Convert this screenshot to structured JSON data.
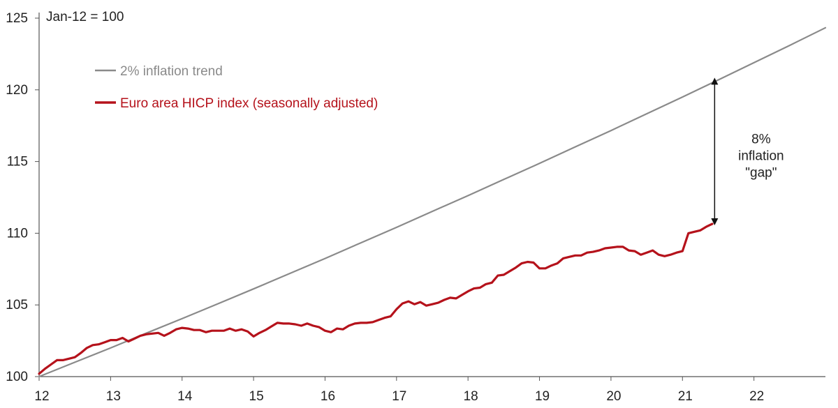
{
  "chart_data": {
    "type": "line",
    "unit_label": "Jan-12 = 100",
    "xlim": [
      12,
      23
    ],
    "ylim": [
      100,
      125
    ],
    "x_ticks": [
      {
        "value": 12,
        "label": "12"
      },
      {
        "value": 13,
        "label": "13"
      },
      {
        "value": 14,
        "label": "14"
      },
      {
        "value": 15,
        "label": "15"
      },
      {
        "value": 16,
        "label": "16"
      },
      {
        "value": 17,
        "label": "17"
      },
      {
        "value": 18,
        "label": "18"
      },
      {
        "value": 19,
        "label": "19"
      },
      {
        "value": 20,
        "label": "20"
      },
      {
        "value": 21,
        "label": "21"
      },
      {
        "value": 22,
        "label": "22"
      }
    ],
    "y_ticks": [
      {
        "value": 100,
        "label": "100"
      },
      {
        "value": 105,
        "label": "105"
      },
      {
        "value": 110,
        "label": "110"
      },
      {
        "value": 115,
        "label": "115"
      },
      {
        "value": 120,
        "label": "120"
      },
      {
        "value": 125,
        "label": "125"
      }
    ],
    "grid": false,
    "legend_position": "top-left",
    "series": [
      {
        "name": "2% inflation trend",
        "color": "#8a8a8a",
        "x": [
          12,
          12.5,
          13,
          13.5,
          14,
          14.5,
          15,
          15.5,
          16,
          16.5,
          17,
          17.5,
          18,
          18.5,
          19,
          19.5,
          20,
          20.5,
          21,
          21.5,
          22,
          22.5,
          23
        ],
        "values": [
          100.0,
          101.0,
          102.0,
          103.03,
          104.04,
          105.08,
          106.12,
          107.18,
          108.24,
          109.33,
          110.41,
          111.52,
          112.62,
          113.75,
          114.87,
          116.02,
          117.16,
          118.33,
          119.5,
          120.69,
          121.89,
          123.1,
          124.33
        ]
      },
      {
        "name": "Euro area HICP index (seasonally adjusted)",
        "color": "#b5121b",
        "x": [
          12,
          12.083,
          12.167,
          12.25,
          12.333,
          12.417,
          12.5,
          12.583,
          12.667,
          12.75,
          12.833,
          12.917,
          13,
          13.083,
          13.167,
          13.25,
          13.333,
          13.417,
          13.5,
          13.583,
          13.667,
          13.75,
          13.833,
          13.917,
          14,
          14.083,
          14.167,
          14.25,
          14.333,
          14.417,
          14.5,
          14.583,
          14.667,
          14.75,
          14.833,
          14.917,
          15,
          15.083,
          15.167,
          15.25,
          15.333,
          15.417,
          15.5,
          15.583,
          15.667,
          15.75,
          15.833,
          15.917,
          16,
          16.083,
          16.167,
          16.25,
          16.333,
          16.417,
          16.5,
          16.583,
          16.667,
          16.75,
          16.833,
          16.917,
          17,
          17.083,
          17.167,
          17.25,
          17.333,
          17.417,
          17.5,
          17.583,
          17.667,
          17.75,
          17.833,
          17.917,
          18,
          18.083,
          18.167,
          18.25,
          18.333,
          18.417,
          18.5,
          18.583,
          18.667,
          18.75,
          18.833,
          18.917,
          19,
          19.083,
          19.167,
          19.25,
          19.333,
          19.417,
          19.5,
          19.583,
          19.667,
          19.75,
          19.833,
          19.917,
          20,
          20.083,
          20.167,
          20.25,
          20.333,
          20.417,
          20.5,
          20.583,
          20.667,
          20.75,
          20.833,
          20.917,
          21,
          21.083,
          21.167,
          21.25,
          21.333,
          21.417
        ],
        "values": [
          100.2,
          100.55,
          100.85,
          101.15,
          101.15,
          101.25,
          101.35,
          101.65,
          102.0,
          102.2,
          102.25,
          102.4,
          102.55,
          102.55,
          102.7,
          102.45,
          102.65,
          102.85,
          102.95,
          103.0,
          103.05,
          102.85,
          103.05,
          103.3,
          103.4,
          103.35,
          103.25,
          103.25,
          103.1,
          103.2,
          103.2,
          103.2,
          103.35,
          103.2,
          103.3,
          103.15,
          102.8,
          103.05,
          103.25,
          103.5,
          103.75,
          103.7,
          103.7,
          103.65,
          103.55,
          103.7,
          103.55,
          103.45,
          103.2,
          103.1,
          103.35,
          103.3,
          103.55,
          103.7,
          103.75,
          103.75,
          103.8,
          103.95,
          104.1,
          104.2,
          104.7,
          105.1,
          105.25,
          105.05,
          105.2,
          104.95,
          105.05,
          105.15,
          105.35,
          105.5,
          105.45,
          105.7,
          105.95,
          106.15,
          106.2,
          106.45,
          106.55,
          107.05,
          107.1,
          107.35,
          107.6,
          107.9,
          108.0,
          107.95,
          107.55,
          107.55,
          107.75,
          107.9,
          108.25,
          108.35,
          108.45,
          108.45,
          108.65,
          108.7,
          108.8,
          108.95,
          109.0,
          109.05,
          109.05,
          108.8,
          108.75,
          108.5,
          108.65,
          108.8,
          108.5,
          108.4,
          108.5,
          108.65,
          108.75,
          110.0,
          110.1,
          110.2,
          110.45,
          110.65
        ]
      }
    ],
    "annotation": {
      "lines": [
        "8%",
        "inflation",
        "\"gap\""
      ],
      "arrow_x": 21.45,
      "arrow_from": 110.7,
      "arrow_to": 120.7,
      "text_x": 22.1,
      "text_y_center": 115.4
    }
  }
}
